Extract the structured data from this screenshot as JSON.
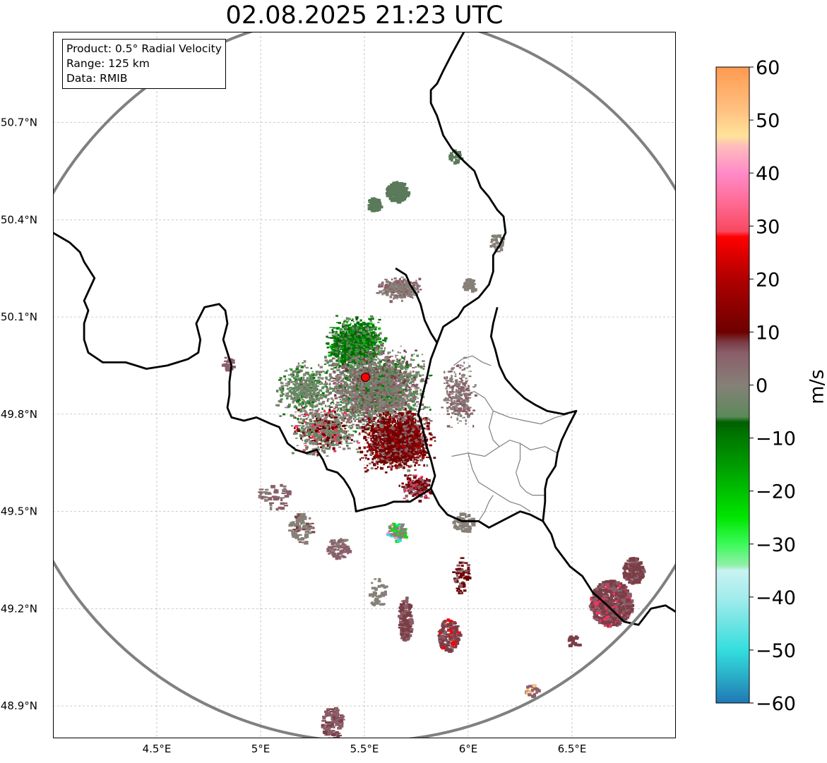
{
  "title": "02.08.2025 21:23 UTC",
  "info_box": {
    "product": "Product: 0.5° Radial Velocity",
    "range": "Range: 125 km",
    "source": "Data: RMIB"
  },
  "map": {
    "lon_range": [
      4.0,
      7.0
    ],
    "lat_range": [
      48.8,
      50.98
    ],
    "lon_ticks": [
      {
        "value": 4.5,
        "label": "4.5°E"
      },
      {
        "value": 5.0,
        "label": "5°E"
      },
      {
        "value": 5.5,
        "label": "5.5°E"
      },
      {
        "value": 6.0,
        "label": "6°E"
      },
      {
        "value": 6.5,
        "label": "6.5°E"
      }
    ],
    "lat_ticks": [
      {
        "value": 48.9,
        "label": "48.9°N"
      },
      {
        "value": 49.2,
        "label": "49.2°N"
      },
      {
        "value": 49.5,
        "label": "49.5°N"
      },
      {
        "value": 49.8,
        "label": "49.8°N"
      },
      {
        "value": 50.1,
        "label": "50.1°N"
      },
      {
        "value": 50.4,
        "label": "50.4°N"
      },
      {
        "value": 50.7,
        "label": "50.7°N"
      }
    ],
    "radar_site": {
      "lon": 5.505,
      "lat": 49.914
    },
    "range_km": 125,
    "range_ring_color": "#808080",
    "border_color": "#000000",
    "admin_border_color": "#808080"
  },
  "colorbar": {
    "label": "m/s",
    "range": [
      -60,
      60
    ],
    "ticks": [
      {
        "value": 60,
        "label": "60"
      },
      {
        "value": 50,
        "label": "50"
      },
      {
        "value": 40,
        "label": "40"
      },
      {
        "value": 30,
        "label": "30"
      },
      {
        "value": 20,
        "label": "20"
      },
      {
        "value": 10,
        "label": "10"
      },
      {
        "value": 0,
        "label": "0"
      },
      {
        "value": -10,
        "label": "−10"
      },
      {
        "value": -20,
        "label": "−20"
      },
      {
        "value": -30,
        "label": "−30"
      },
      {
        "value": -40,
        "label": "−40"
      },
      {
        "value": -50,
        "label": "−50"
      },
      {
        "value": -60,
        "label": "−60"
      }
    ],
    "color_stops": [
      {
        "value": -60,
        "color": "#1f78b4"
      },
      {
        "value": -55,
        "color": "#2aaec9"
      },
      {
        "value": -50,
        "color": "#33dede"
      },
      {
        "value": -45,
        "color": "#6ee4e4"
      },
      {
        "value": -40,
        "color": "#a4ecec"
      },
      {
        "value": -35,
        "color": "#c8f2f2"
      },
      {
        "value": -34,
        "color": "#90f0a8"
      },
      {
        "value": -30,
        "color": "#3cfa5a"
      },
      {
        "value": -25,
        "color": "#00e600"
      },
      {
        "value": -20,
        "color": "#00c000"
      },
      {
        "value": -15,
        "color": "#009a00"
      },
      {
        "value": -10,
        "color": "#007a00"
      },
      {
        "value": -7,
        "color": "#006000"
      },
      {
        "value": -6,
        "color": "#5a8a5a"
      },
      {
        "value": 0,
        "color": "#868078"
      },
      {
        "value": 6,
        "color": "#8a5e6a"
      },
      {
        "value": 8,
        "color": "#7a3e46"
      },
      {
        "value": 10,
        "color": "#6e0000"
      },
      {
        "value": 20,
        "color": "#b00000"
      },
      {
        "value": 28,
        "color": "#ff0000"
      },
      {
        "value": 29,
        "color": "#f84860"
      },
      {
        "value": 35,
        "color": "#ff6e9a"
      },
      {
        "value": 40,
        "color": "#ff8ac8"
      },
      {
        "value": 45,
        "color": "#ffbcbc"
      },
      {
        "value": 47,
        "color": "#ffe39a"
      },
      {
        "value": 52,
        "color": "#ffc080"
      },
      {
        "value": 60,
        "color": "#ff9a50"
      }
    ]
  },
  "echoes": [
    {
      "kind": "core",
      "lon": 5.45,
      "lat": 50.02,
      "rlon": 0.16,
      "rlat": 0.09,
      "count": 1600,
      "weights": {
        "#007a00": 5,
        "#006000": 3,
        "#5a8a5a": 2,
        "#00c000": 1,
        "#868078": 1
      }
    },
    {
      "kind": "core",
      "lon": 5.55,
      "lat": 49.88,
      "rlon": 0.3,
      "rlat": 0.15,
      "count": 2600,
      "weights": {
        "#868078": 5,
        "#8a5e6a": 3,
        "#5a8a5a": 3,
        "#7a3e46": 1,
        "#007a00": 1
      }
    },
    {
      "kind": "core",
      "lon": 5.65,
      "lat": 49.72,
      "rlon": 0.2,
      "rlat": 0.11,
      "count": 2200,
      "weights": {
        "#6e0000": 6,
        "#8a0000": 2,
        "#8a5e6a": 2,
        "#b00000": 1,
        "#868078": 1
      }
    },
    {
      "kind": "core",
      "lon": 5.3,
      "lat": 49.75,
      "rlon": 0.2,
      "rlat": 0.09,
      "count": 700,
      "weights": {
        "#868078": 4,
        "#6e0000": 2,
        "#5a8a5a": 2,
        "#ff3060": 1
      }
    },
    {
      "kind": "core",
      "lon": 5.2,
      "lat": 49.88,
      "rlon": 0.16,
      "rlat": 0.1,
      "count": 500,
      "weights": {
        "#5a8a5a": 3,
        "#868078": 3,
        "#007a00": 1
      }
    },
    {
      "kind": "core",
      "lon": 5.67,
      "lat": 50.19,
      "rlon": 0.13,
      "rlat": 0.04,
      "count": 360,
      "weights": {
        "#868078": 3,
        "#8a5e6a": 2
      }
    },
    {
      "kind": "core",
      "lon": 5.75,
      "lat": 49.58,
      "rlon": 0.1,
      "rlat": 0.05,
      "count": 220,
      "weights": {
        "#6e0000": 3,
        "#8a5e6a": 2,
        "#ff3060": 1
      }
    },
    {
      "kind": "core",
      "lon": 5.95,
      "lat": 49.86,
      "rlon": 0.1,
      "rlat": 0.13,
      "count": 280,
      "weights": {
        "#868078": 3,
        "#8a5e6a": 3
      }
    },
    {
      "kind": "blob",
      "lon": 5.65,
      "lat": 49.44,
      "rlon": 0.05,
      "rlat": 0.03,
      "count": 80,
      "weights": {
        "#868078": 3,
        "#00e600": 1,
        "#33dede": 1,
        "#ff8ac8": 1
      }
    },
    {
      "kind": "blob",
      "lon": 5.97,
      "lat": 49.47,
      "rlon": 0.05,
      "rlat": 0.03,
      "count": 60,
      "weights": {
        "#868078": 3
      }
    },
    {
      "kind": "blob",
      "lon": 5.65,
      "lat": 50.49,
      "rlon": 0.05,
      "rlat": 0.03,
      "count": 220,
      "weights": {
        "#5a7a5a": 1
      }
    },
    {
      "kind": "blob",
      "lon": 5.54,
      "lat": 50.45,
      "rlon": 0.03,
      "rlat": 0.02,
      "count": 80,
      "weights": {
        "#5a7a5a": 1
      }
    },
    {
      "kind": "blob",
      "lon": 6.0,
      "lat": 50.2,
      "rlon": 0.03,
      "rlat": 0.02,
      "count": 50,
      "weights": {
        "#868078": 1
      }
    },
    {
      "kind": "blob",
      "lon": 6.68,
      "lat": 49.22,
      "rlon": 0.1,
      "rlat": 0.07,
      "count": 700,
      "weights": {
        "#7a3e46": 6,
        "#8a5e6a": 2,
        "#ff3060": 1
      }
    },
    {
      "kind": "blob",
      "lon": 6.79,
      "lat": 49.32,
      "rlon": 0.05,
      "rlat": 0.04,
      "count": 180,
      "weights": {
        "#7a3e46": 4,
        "#8a5e6a": 1
      }
    },
    {
      "kind": "blob",
      "lon": 5.19,
      "lat": 49.45,
      "rlon": 0.06,
      "rlat": 0.05,
      "count": 80,
      "weights": {
        "#868078": 3,
        "#7a3e46": 1
      }
    },
    {
      "kind": "blob",
      "lon": 5.37,
      "lat": 49.39,
      "rlon": 0.06,
      "rlat": 0.03,
      "count": 80,
      "weights": {
        "#8a5e6a": 2,
        "#868078": 1
      }
    },
    {
      "kind": "blob",
      "lon": 5.69,
      "lat": 49.17,
      "rlon": 0.03,
      "rlat": 0.07,
      "count": 150,
      "weights": {
        "#7a3e46": 2,
        "#8a5e6a": 1
      }
    },
    {
      "kind": "blob",
      "lon": 5.9,
      "lat": 49.12,
      "rlon": 0.05,
      "rlat": 0.05,
      "count": 150,
      "weights": {
        "#7a3e46": 2,
        "#8a5e6a": 1,
        "#ff0000": 1
      }
    },
    {
      "kind": "blob",
      "lon": 5.34,
      "lat": 48.85,
      "rlon": 0.05,
      "rlat": 0.05,
      "count": 120,
      "weights": {
        "#8a5e6a": 2,
        "#7a3e46": 1
      }
    },
    {
      "kind": "blob",
      "lon": 5.96,
      "lat": 49.31,
      "rlon": 0.04,
      "rlat": 0.06,
      "count": 60,
      "weights": {
        "#6e0000": 2,
        "#8a5e6a": 1
      }
    },
    {
      "kind": "blob",
      "lon": 5.06,
      "lat": 49.55,
      "rlon": 0.08,
      "rlat": 0.04,
      "count": 50,
      "weights": {
        "#8a5e6a": 2,
        "#868078": 1
      }
    },
    {
      "kind": "blob",
      "lon": 6.3,
      "lat": 48.95,
      "rlon": 0.03,
      "rlat": 0.02,
      "count": 20,
      "weights": {
        "#8a5e6a": 2,
        "#ffc080": 1
      }
    },
    {
      "kind": "blob",
      "lon": 6.13,
      "lat": 50.33,
      "rlon": 0.03,
      "rlat": 0.03,
      "count": 30,
      "weights": {
        "#868078": 2
      }
    },
    {
      "kind": "blob",
      "lon": 5.93,
      "lat": 50.6,
      "rlon": 0.03,
      "rlat": 0.02,
      "count": 25,
      "weights": {
        "#5a7a5a": 1
      }
    },
    {
      "kind": "blob",
      "lon": 4.84,
      "lat": 49.96,
      "rlon": 0.03,
      "rlat": 0.02,
      "count": 25,
      "weights": {
        "#8a5e6a": 1
      }
    },
    {
      "kind": "blob",
      "lon": 6.5,
      "lat": 49.1,
      "rlon": 0.03,
      "rlat": 0.02,
      "count": 20,
      "weights": {
        "#7a3e46": 1
      }
    },
    {
      "kind": "blob",
      "lon": 5.56,
      "lat": 49.25,
      "rlon": 0.04,
      "rlat": 0.05,
      "count": 40,
      "weights": {
        "#868078": 1
      }
    }
  ],
  "borders": {
    "national": [
      [
        [
          5.98,
          50.98
        ],
        [
          5.92,
          50.91
        ],
        [
          5.88,
          50.86
        ],
        [
          5.85,
          50.82
        ],
        [
          5.82,
          50.8
        ],
        [
          5.82,
          50.76
        ],
        [
          5.85,
          50.72
        ],
        [
          5.88,
          50.66
        ],
        [
          5.92,
          50.62
        ],
        [
          5.98,
          50.58
        ],
        [
          6.03,
          50.55
        ],
        [
          6.06,
          50.5
        ],
        [
          6.1,
          50.47
        ],
        [
          6.14,
          50.43
        ],
        [
          6.17,
          50.41
        ],
        [
          6.18,
          50.36
        ],
        [
          6.15,
          50.32
        ],
        [
          6.12,
          50.29
        ],
        [
          6.12,
          50.24
        ],
        [
          6.1,
          50.2
        ],
        [
          6.05,
          50.16
        ],
        [
          5.98,
          50.13
        ],
        [
          5.95,
          50.1
        ],
        [
          5.88,
          50.07
        ],
        [
          5.85,
          50.02
        ],
        [
          5.82,
          49.97
        ],
        [
          5.8,
          49.91
        ],
        [
          5.78,
          49.86
        ],
        [
          5.76,
          49.8
        ],
        [
          5.78,
          49.76
        ],
        [
          5.8,
          49.7
        ],
        [
          5.82,
          49.66
        ],
        [
          5.84,
          49.61
        ],
        [
          5.82,
          49.57
        ],
        [
          5.86,
          49.52
        ],
        [
          5.9,
          49.49
        ],
        [
          5.97,
          49.47
        ],
        [
          6.05,
          49.47
        ],
        [
          6.1,
          49.45
        ],
        [
          6.19,
          49.48
        ],
        [
          6.25,
          49.5
        ],
        [
          6.3,
          49.49
        ],
        [
          6.36,
          49.47
        ],
        [
          6.4,
          49.43
        ],
        [
          6.42,
          49.39
        ],
        [
          6.49,
          49.33
        ],
        [
          6.55,
          49.3
        ],
        [
          6.6,
          49.25
        ],
        [
          6.67,
          49.21
        ],
        [
          6.75,
          49.16
        ],
        [
          6.82,
          49.15
        ],
        [
          6.88,
          49.2
        ],
        [
          6.95,
          49.21
        ],
        [
          7.0,
          49.19
        ]
      ],
      [
        [
          4.0,
          50.36
        ],
        [
          4.08,
          50.33
        ],
        [
          4.13,
          50.3
        ],
        [
          4.15,
          50.27
        ],
        [
          4.2,
          50.22
        ],
        [
          4.15,
          50.15
        ],
        [
          4.17,
          50.12
        ],
        [
          4.15,
          50.08
        ],
        [
          4.15,
          50.03
        ],
        [
          4.17,
          49.99
        ],
        [
          4.24,
          49.96
        ],
        [
          4.3,
          49.96
        ],
        [
          4.35,
          49.96
        ],
        [
          4.4,
          49.95
        ],
        [
          4.45,
          49.94
        ],
        [
          4.55,
          49.95
        ],
        [
          4.6,
          49.96
        ],
        [
          4.65,
          49.97
        ],
        [
          4.7,
          49.99
        ],
        [
          4.71,
          50.03
        ],
        [
          4.69,
          50.08
        ],
        [
          4.73,
          50.13
        ],
        [
          4.8,
          50.14
        ],
        [
          4.83,
          50.12
        ],
        [
          4.84,
          50.08
        ],
        [
          4.82,
          50.03
        ],
        [
          4.84,
          49.99
        ],
        [
          4.86,
          49.95
        ],
        [
          4.85,
          49.9
        ],
        [
          4.85,
          49.86
        ],
        [
          4.84,
          49.82
        ],
        [
          4.86,
          49.79
        ],
        [
          4.92,
          49.78
        ],
        [
          4.98,
          49.79
        ],
        [
          5.05,
          49.77
        ],
        [
          5.09,
          49.76
        ],
        [
          5.13,
          49.71
        ],
        [
          5.17,
          49.69
        ],
        [
          5.22,
          49.68
        ],
        [
          5.27,
          49.69
        ],
        [
          5.3,
          49.66
        ],
        [
          5.32,
          49.63
        ],
        [
          5.37,
          49.62
        ],
        [
          5.4,
          49.6
        ],
        [
          5.43,
          49.57
        ],
        [
          5.45,
          49.54
        ],
        [
          5.46,
          49.5
        ],
        [
          5.52,
          49.51
        ],
        [
          5.6,
          49.52
        ],
        [
          5.64,
          49.53
        ],
        [
          5.72,
          49.53
        ],
        [
          5.77,
          49.55
        ],
        [
          5.82,
          49.57
        ]
      ],
      [
        [
          5.85,
          50.02
        ],
        [
          5.82,
          50.05
        ],
        [
          5.79,
          50.09
        ],
        [
          5.77,
          50.14
        ],
        [
          5.75,
          50.17
        ],
        [
          5.72,
          50.2
        ],
        [
          5.7,
          50.23
        ],
        [
          5.65,
          50.25
        ]
      ],
      [
        [
          6.14,
          50.13
        ],
        [
          6.12,
          50.08
        ],
        [
          6.11,
          50.04
        ],
        [
          6.13,
          50.0
        ],
        [
          6.15,
          49.95
        ],
        [
          6.18,
          49.91
        ],
        [
          6.22,
          49.88
        ],
        [
          6.27,
          49.85
        ],
        [
          6.32,
          49.83
        ],
        [
          6.38,
          49.81
        ],
        [
          6.46,
          49.8
        ],
        [
          6.52,
          49.81
        ],
        [
          6.48,
          49.76
        ],
        [
          6.45,
          49.72
        ],
        [
          6.43,
          49.68
        ],
        [
          6.42,
          49.64
        ],
        [
          6.38,
          49.6
        ],
        [
          6.37,
          49.57
        ],
        [
          6.37,
          49.53
        ],
        [
          6.36,
          49.47
        ]
      ]
    ],
    "admin": [
      [
        [
          5.9,
          49.9
        ],
        [
          5.93,
          49.87
        ],
        [
          5.98,
          49.86
        ],
        [
          6.03,
          49.87
        ],
        [
          6.08,
          49.85
        ],
        [
          6.12,
          49.81
        ],
        [
          6.2,
          49.79
        ],
        [
          6.27,
          49.78
        ],
        [
          6.35,
          49.77
        ],
        [
          6.42,
          49.79
        ],
        [
          6.48,
          49.8
        ]
      ],
      [
        [
          5.92,
          49.67
        ],
        [
          6.0,
          49.68
        ],
        [
          6.08,
          49.67
        ],
        [
          6.15,
          49.7
        ],
        [
          6.2,
          49.72
        ],
        [
          6.25,
          49.71
        ],
        [
          6.3,
          49.69
        ],
        [
          6.37,
          49.7
        ],
        [
          6.43,
          49.68
        ]
      ],
      [
        [
          6.0,
          49.68
        ],
        [
          6.02,
          49.63
        ],
        [
          6.05,
          49.59
        ],
        [
          6.1,
          49.57
        ],
        [
          6.15,
          49.55
        ],
        [
          6.2,
          49.53
        ],
        [
          6.25,
          49.52
        ],
        [
          6.3,
          49.5
        ]
      ],
      [
        [
          6.05,
          49.47
        ],
        [
          6.08,
          49.5
        ],
        [
          6.1,
          49.53
        ],
        [
          6.12,
          49.55
        ]
      ],
      [
        [
          6.12,
          49.81
        ],
        [
          6.1,
          49.76
        ],
        [
          6.12,
          49.72
        ],
        [
          6.15,
          49.7
        ]
      ],
      [
        [
          6.25,
          49.71
        ],
        [
          6.25,
          49.66
        ],
        [
          6.23,
          49.62
        ],
        [
          6.25,
          49.58
        ],
        [
          6.28,
          49.56
        ],
        [
          6.31,
          49.55
        ],
        [
          6.37,
          49.55
        ]
      ],
      [
        [
          5.93,
          49.95
        ],
        [
          5.97,
          49.97
        ],
        [
          6.02,
          49.98
        ],
        [
          6.07,
          49.96
        ],
        [
          6.11,
          49.95
        ]
      ]
    ]
  }
}
